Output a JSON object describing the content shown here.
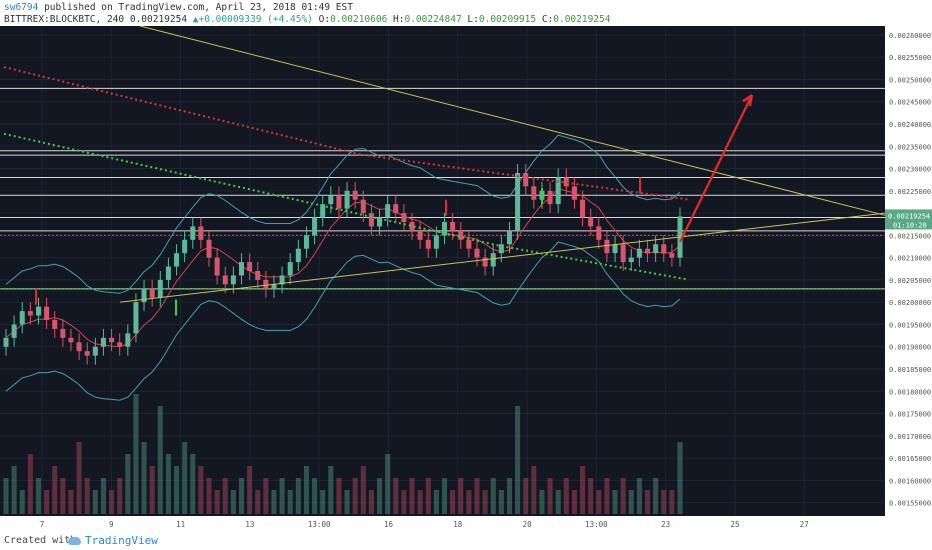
{
  "header": {
    "author": "sw6794",
    "published": "published on TradingView.com, April 23, 2018 01:49 EST",
    "symbol": "BITTREX:BLOCKBTC, 240",
    "change": "+0.00009339 (+4.45%)",
    "open": "0.00210606",
    "high": "0.00224847",
    "low": "0.00209915",
    "close": "0.00219254",
    "last_price_prefix": "0.00219254",
    "labels": {
      "o": "O:",
      "h": "H:",
      "l": "L:",
      "c": "C:"
    }
  },
  "footer": {
    "created_with": "Created with",
    "brand": "TradingView"
  },
  "colors": {
    "background": "#131722",
    "grid": "#1e2431",
    "bull": "#5fb89a",
    "bear": "#d9556b",
    "bollinger": "#3fa3b0",
    "trendline": "#c6c64a",
    "red_dots": "#e0303a",
    "green_dots": "#3ecf3e",
    "arrow": "#e62a2a"
  },
  "chart_data": {
    "type": "candlestick",
    "x_tick_labels": [
      "7",
      "9",
      "11",
      "13",
      "13:00",
      "16",
      "18",
      "20",
      "13:00",
      "23",
      "25",
      "27"
    ],
    "y_tick_labels": [
      "0.00260000",
      "0.00255000",
      "0.00250000",
      "0.00245000",
      "0.00240000",
      "0.00235000",
      "0.00230000",
      "0.00225000",
      "0.00220000",
      "0.00215000",
      "0.00210000",
      "0.00205000",
      "0.00200000",
      "0.00195000",
      "0.00190000",
      "0.00185000",
      "0.00180000",
      "0.00175000",
      "0.00170000",
      "0.00165000",
      "0.00160000",
      "0.00155000"
    ],
    "ylim": [
      0.00152,
      0.00262
    ],
    "last_price": {
      "value": 0.00219254,
      "label": "0.00219254",
      "countdown": "01:10:20"
    },
    "horizontal_levels": [
      0.00248,
      0.00234,
      0.00233,
      0.00228,
      0.00224,
      0.00219,
      0.00216,
      0.00203
    ],
    "candles": {
      "closes": [
        0.00192,
        0.00195,
        0.00198,
        0.00197,
        0.00199,
        0.00196,
        0.00194,
        0.00192,
        0.00191,
        0.00189,
        0.00188,
        0.0019,
        0.00192,
        0.00191,
        0.0019,
        0.00193,
        0.002,
        0.00203,
        0.00201,
        0.00205,
        0.00208,
        0.00211,
        0.00214,
        0.00217,
        0.00214,
        0.0021,
        0.00206,
        0.00204,
        0.00206,
        0.00209,
        0.00207,
        0.00205,
        0.00203,
        0.00204,
        0.00206,
        0.00209,
        0.00212,
        0.00215,
        0.00219,
        0.00222,
        0.00224,
        0.00221,
        0.00225,
        0.00223,
        0.0022,
        0.00217,
        0.00219,
        0.00222,
        0.0022,
        0.00218,
        0.00216,
        0.00214,
        0.00212,
        0.00215,
        0.00218,
        0.00216,
        0.00214,
        0.00212,
        0.0021,
        0.00208,
        0.00211,
        0.00213,
        0.00216,
        0.00229,
        0.00226,
        0.00223,
        0.00225,
        0.00222,
        0.00228,
        0.00226,
        0.00223,
        0.00219,
        0.00217,
        0.00214,
        0.00211,
        0.00213,
        0.00209,
        0.0021,
        0.00212,
        0.00211,
        0.00213,
        0.00211,
        0.0021,
        0.00219254
      ],
      "volumes": [
        0.3,
        0.4,
        0.2,
        0.5,
        0.3,
        0.2,
        0.4,
        0.3,
        0.2,
        0.6,
        0.3,
        0.2,
        0.3,
        0.2,
        0.3,
        0.5,
        1.0,
        0.6,
        0.4,
        0.9,
        0.5,
        0.4,
        0.6,
        0.5,
        0.4,
        0.3,
        0.2,
        0.3,
        0.2,
        0.3,
        0.4,
        0.2,
        0.3,
        0.2,
        0.3,
        0.2,
        0.3,
        0.4,
        0.3,
        0.2,
        0.4,
        0.3,
        0.2,
        0.3,
        0.4,
        0.2,
        0.3,
        0.5,
        0.3,
        0.2,
        0.3,
        0.2,
        0.3,
        0.2,
        0.3,
        0.2,
        0.3,
        0.2,
        0.3,
        0.2,
        0.3,
        0.2,
        0.3,
        0.9,
        0.3,
        0.4,
        0.2,
        0.3,
        0.2,
        0.3,
        0.2,
        0.4,
        0.3,
        0.2,
        0.3,
        0.2,
        0.3,
        0.2,
        0.3,
        0.2,
        0.3,
        0.2,
        0.2,
        0.6
      ]
    }
  }
}
